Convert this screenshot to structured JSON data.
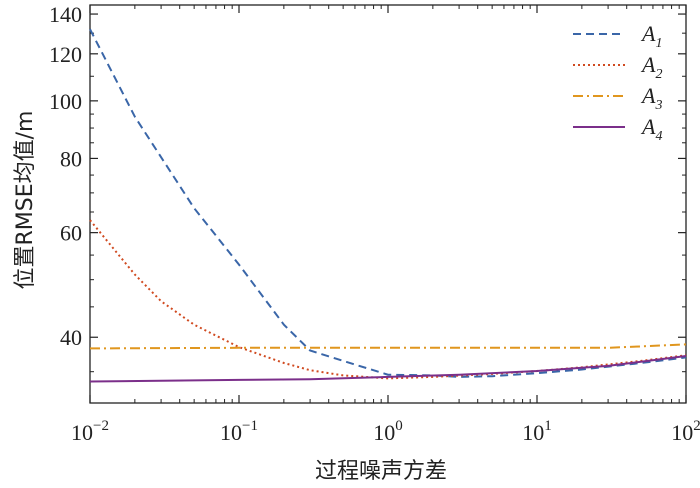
{
  "chart_data": {
    "type": "line",
    "title": "",
    "xlabel": "过程噪声方差",
    "ylabel": "位置RMSE均值/m",
    "x_scale": "log",
    "y_scale": "log",
    "xlim": [
      0.01,
      100
    ],
    "ylim": [
      31,
      145
    ],
    "x_ticks": [
      {
        "value": 0.01,
        "base": "10",
        "exp": "−2"
      },
      {
        "value": 0.1,
        "base": "10",
        "exp": "−1"
      },
      {
        "value": 1,
        "base": "10",
        "exp": "0"
      },
      {
        "value": 10,
        "base": "10",
        "exp": "1"
      },
      {
        "value": 100,
        "base": "10",
        "exp": "2"
      }
    ],
    "y_ticks": [
      40,
      60,
      80,
      100,
      120,
      140
    ],
    "grid": false,
    "legend_position": "top-right",
    "series": [
      {
        "name": "A",
        "sub": "1",
        "color": "#3a66a8",
        "dash": "8,5",
        "x": [
          0.01,
          0.02,
          0.05,
          0.1,
          0.2,
          0.3,
          0.5,
          1,
          2,
          3,
          5,
          10,
          20,
          50,
          100
        ],
        "y": [
          132,
          94,
          66,
          53,
          42,
          38,
          36.5,
          34.6,
          34.5,
          34.3,
          34.4,
          34.8,
          35.3,
          36.2,
          37
        ]
      },
      {
        "name": "A",
        "sub": "2",
        "color": "#d04a20",
        "dash": "2,3",
        "x": [
          0.01,
          0.02,
          0.03,
          0.05,
          0.1,
          0.2,
          0.3,
          0.5,
          1,
          2,
          5,
          10,
          20,
          50,
          100
        ],
        "y": [
          63,
          51,
          46,
          42,
          38.5,
          36.2,
          35.2,
          34.5,
          34.1,
          34.3,
          34.7,
          35.1,
          35.6,
          36.5,
          37.3
        ]
      },
      {
        "name": "A",
        "sub": "3",
        "color": "#e0961e",
        "dash": "10,4,2,4",
        "x": [
          0.01,
          0.1,
          1,
          10,
          30,
          50,
          100
        ],
        "y": [
          38.3,
          38.4,
          38.4,
          38.4,
          38.4,
          38.6,
          38.9
        ]
      },
      {
        "name": "A",
        "sub": "4",
        "color": "#7b2f8a",
        "dash": "",
        "x": [
          0.01,
          0.1,
          0.3,
          1,
          3,
          10,
          30,
          100
        ],
        "y": [
          33.7,
          33.9,
          34.0,
          34.3,
          34.6,
          35.1,
          35.8,
          37.2
        ]
      }
    ]
  }
}
